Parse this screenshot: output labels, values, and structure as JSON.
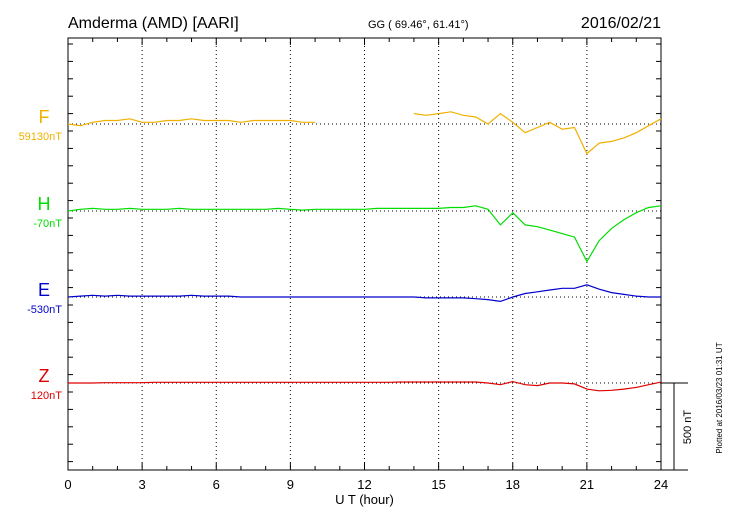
{
  "header": {
    "station": "Amderma (AMD)  [AARI]",
    "coords": "GG ( 69.46°,  61.41°)",
    "date": "2016/02/21"
  },
  "side_note": "Plotted at 2016/03/23 01:31  UT",
  "scale_label": "500 nT",
  "chart_data": {
    "type": "line",
    "xlabel": "U T (hour)",
    "xlim": [
      0,
      24
    ],
    "xticks": [
      0,
      3,
      6,
      9,
      12,
      15,
      18,
      21,
      24
    ],
    "xtick_labels": [
      "0",
      "3",
      "6",
      "9",
      "12",
      "15",
      "18",
      "21",
      "24"
    ],
    "scale_bar_nT": 500,
    "grid": "dotted verticals every 3 h",
    "series": [
      {
        "name": "F",
        "baseline_label": "59130nT",
        "baseline_nT": 59130,
        "color": "#f0b000",
        "x": [
          0,
          0.5,
          1,
          1.5,
          2,
          2.5,
          3,
          3.5,
          4,
          4.5,
          5,
          5.5,
          6,
          6.5,
          7,
          7.5,
          8,
          8.5,
          9,
          9.5,
          10,
          14,
          14.5,
          15,
          15.5,
          16,
          16.5,
          17,
          17.5,
          18,
          18.5,
          19,
          19.5,
          20,
          20.5,
          21,
          21.5,
          22,
          22.5,
          23,
          23.5,
          24
        ],
        "y": [
          59130,
          59120,
          59140,
          59150,
          59150,
          59160,
          59140,
          59140,
          59150,
          59150,
          59160,
          59150,
          59150,
          59150,
          59140,
          59150,
          59150,
          59150,
          59150,
          59140,
          59140,
          59190,
          59180,
          59190,
          59200,
          59180,
          59170,
          59130,
          59190,
          59140,
          59080,
          59110,
          59140,
          59100,
          59110,
          58960,
          59020,
          59030,
          59050,
          59080,
          59120,
          59160
        ]
      },
      {
        "name": "H",
        "baseline_label": "-70nT",
        "baseline_nT": -70,
        "color": "#00dd00",
        "x": [
          0,
          0.5,
          1,
          1.5,
          2,
          2.5,
          3,
          3.5,
          4,
          4.5,
          5,
          5.5,
          6,
          6.5,
          7,
          7.5,
          8,
          8.5,
          9,
          9.5,
          10,
          10.5,
          11,
          11.5,
          12,
          12.5,
          13,
          13.5,
          14,
          14.5,
          15,
          15.5,
          16,
          16.5,
          17,
          17.5,
          18,
          18.5,
          19,
          19.5,
          20,
          20.5,
          21,
          21.5,
          22,
          22.5,
          23,
          23.5,
          24
        ],
        "y": [
          -70,
          -60,
          -55,
          -60,
          -60,
          -55,
          -60,
          -60,
          -60,
          -55,
          -60,
          -60,
          -60,
          -60,
          -60,
          -60,
          -60,
          -55,
          -60,
          -65,
          -60,
          -60,
          -60,
          -60,
          -60,
          -55,
          -55,
          -55,
          -55,
          -55,
          -55,
          -50,
          -50,
          -40,
          -60,
          -150,
          -80,
          -150,
          -160,
          -180,
          -200,
          -220,
          -360,
          -240,
          -170,
          -120,
          -80,
          -50,
          -40
        ]
      },
      {
        "name": "E",
        "baseline_label": "-530nT",
        "baseline_nT": -530,
        "color": "#0000cc",
        "x": [
          0,
          0.5,
          1,
          1.5,
          2,
          2.5,
          3,
          3.5,
          4,
          4.5,
          5,
          5.5,
          6,
          6.5,
          7,
          7.5,
          8,
          8.5,
          9,
          9.5,
          10,
          10.5,
          11,
          11.5,
          12,
          12.5,
          13,
          13.5,
          14,
          14.5,
          15,
          15.5,
          16,
          16.5,
          17,
          17.5,
          18,
          18.5,
          19,
          19.5,
          20,
          20.5,
          21,
          21.5,
          22,
          22.5,
          23,
          23.5,
          24
        ],
        "y": [
          -530,
          -525,
          -520,
          -525,
          -520,
          -525,
          -525,
          -525,
          -525,
          -525,
          -520,
          -525,
          -525,
          -525,
          -530,
          -530,
          -530,
          -530,
          -530,
          -530,
          -530,
          -530,
          -530,
          -530,
          -530,
          -530,
          -530,
          -530,
          -530,
          -535,
          -535,
          -535,
          -535,
          -540,
          -545,
          -555,
          -530,
          -510,
          -500,
          -490,
          -480,
          -480,
          -460,
          -485,
          -505,
          -515,
          -525,
          -530,
          -530
        ]
      },
      {
        "name": "Z",
        "baseline_label": "120nT",
        "baseline_nT": 120,
        "color": "#dd0000",
        "x": [
          0,
          0.5,
          1,
          1.5,
          2,
          2.5,
          3,
          3.5,
          4,
          4.5,
          5,
          5.5,
          6,
          6.5,
          7,
          7.5,
          8,
          8.5,
          9,
          9.5,
          10,
          10.5,
          11,
          11.5,
          12,
          12.5,
          13,
          13.5,
          14,
          14.5,
          15,
          15.5,
          16,
          16.5,
          17,
          17.5,
          18,
          18.5,
          19,
          19.5,
          20,
          20.5,
          21,
          21.5,
          22,
          22.5,
          23,
          23.5,
          24
        ],
        "y": [
          120,
          120,
          120,
          122,
          122,
          122,
          122,
          124,
          124,
          124,
          124,
          124,
          124,
          124,
          124,
          124,
          124,
          124,
          124,
          124,
          124,
          124,
          124,
          124,
          124,
          124,
          124,
          126,
          126,
          126,
          126,
          126,
          126,
          126,
          120,
          110,
          128,
          110,
          105,
          120,
          120,
          115,
          85,
          75,
          78,
          85,
          95,
          110,
          125
        ]
      }
    ]
  }
}
